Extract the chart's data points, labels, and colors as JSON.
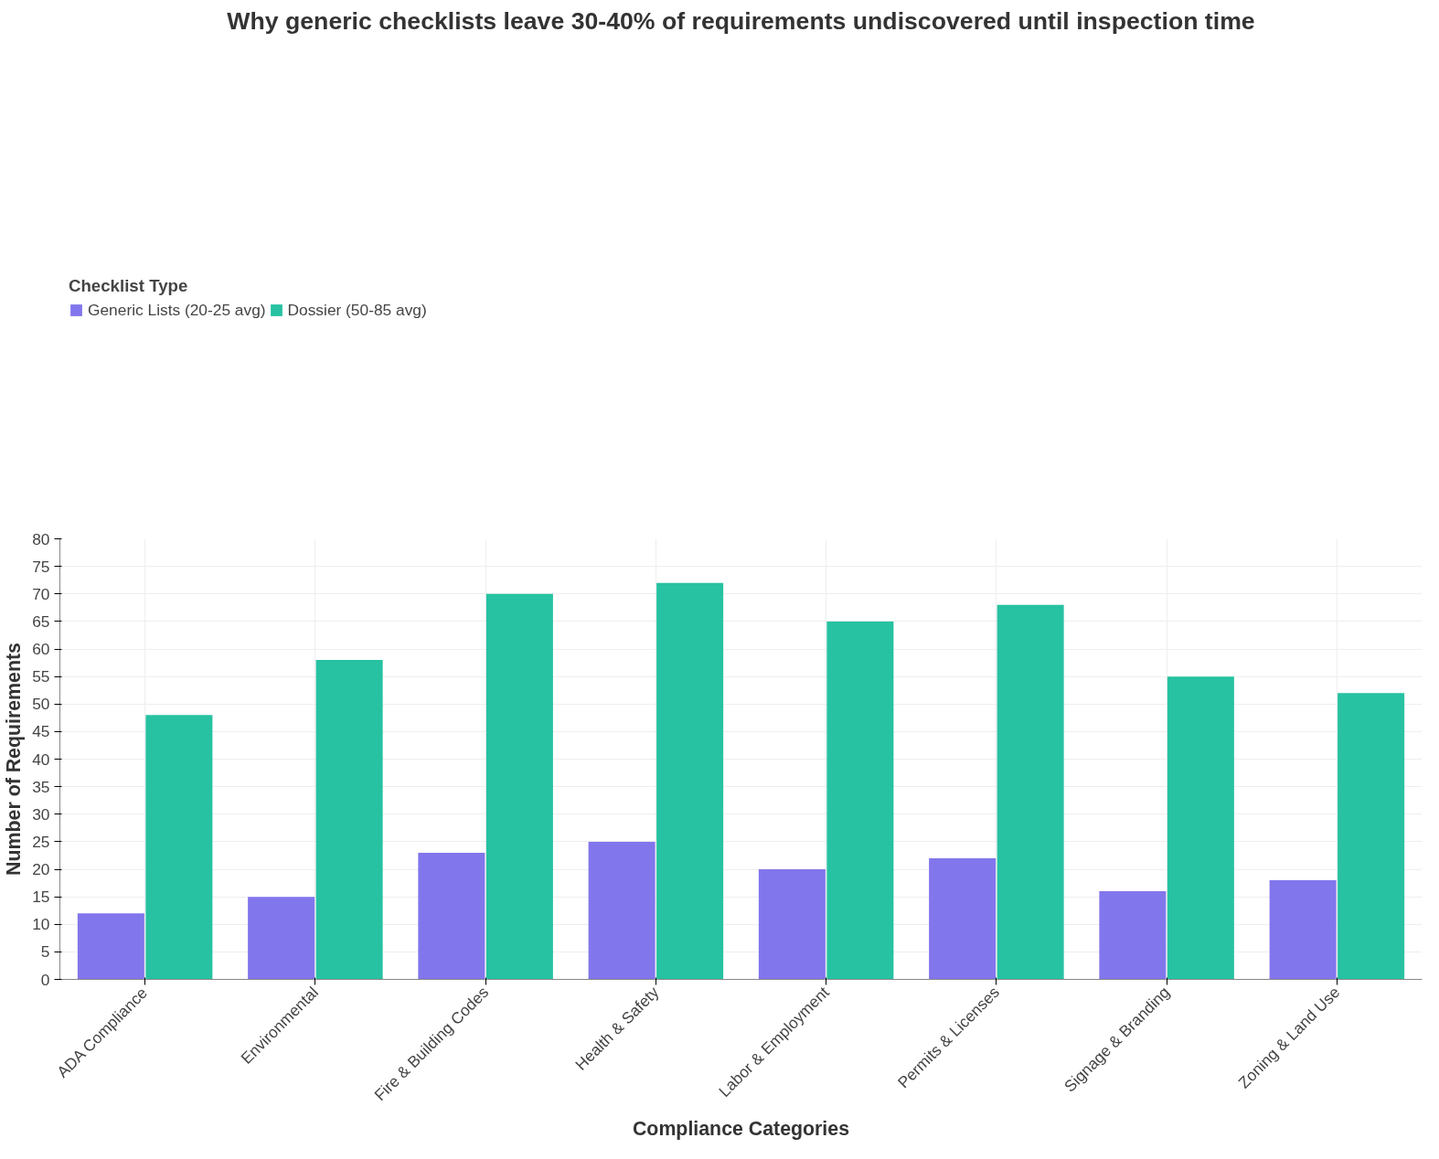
{
  "chart_data": {
    "type": "bar",
    "title": "Why generic checklists leave 30-40% of requirements undiscovered until inspection time",
    "xlabel": "Compliance Categories",
    "ylabel": "Number of Requirements",
    "legend_title": "Checklist Type",
    "categories": [
      "ADA Compliance",
      "Environmental",
      "Fire & Building Codes",
      "Health & Safety",
      "Labor & Employment",
      "Permits & Licenses",
      "Signage & Branding",
      "Zoning & Land Use"
    ],
    "series": [
      {
        "name": "Generic Lists (20-25 avg)",
        "color": "#8276ec",
        "values": [
          12,
          15,
          23,
          25,
          20,
          22,
          16,
          18
        ]
      },
      {
        "name": "Dossier (50-85 avg)",
        "color": "#26c2a2",
        "values": [
          48,
          58,
          70,
          72,
          65,
          68,
          55,
          52
        ]
      }
    ],
    "ylim": [
      0,
      80
    ],
    "yticks": [
      0,
      5,
      10,
      15,
      20,
      25,
      30,
      35,
      40,
      45,
      50,
      55,
      60,
      65,
      70,
      75,
      80
    ],
    "grid": true,
    "legend": "top left"
  }
}
